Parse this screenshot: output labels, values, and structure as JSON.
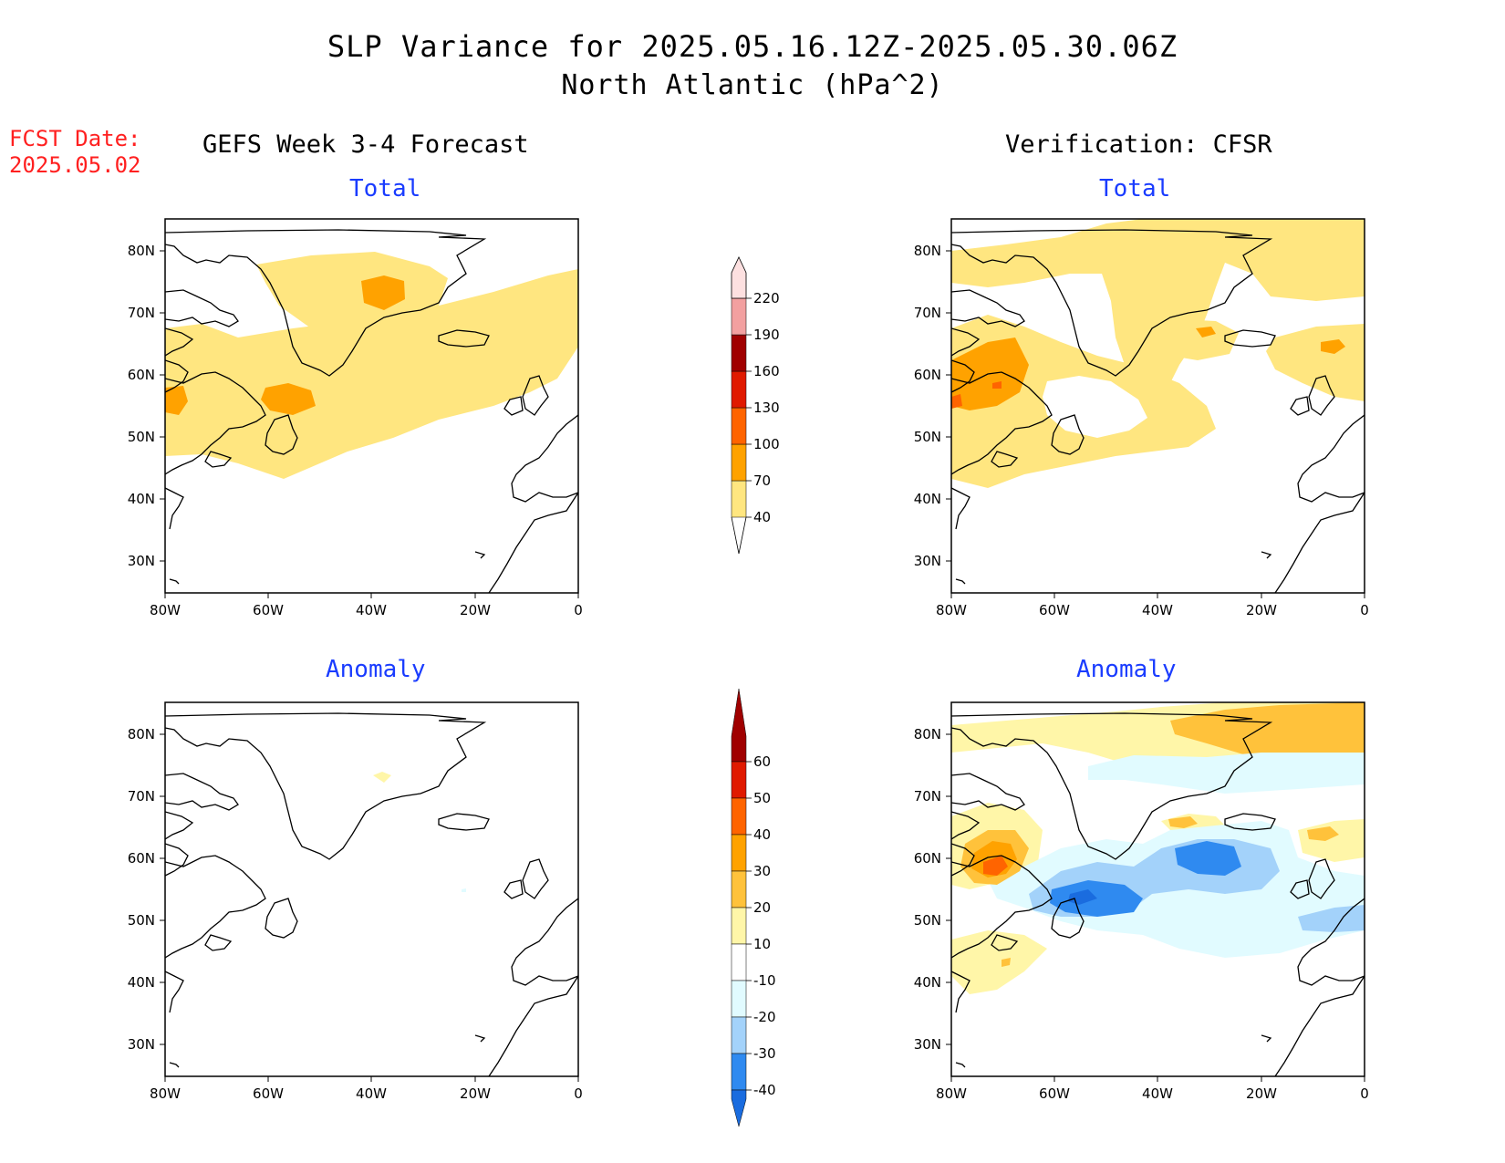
{
  "title": "SLP Variance for 2025.05.16.12Z-2025.05.30.06Z",
  "subtitle": "North Atlantic (hPa^2)",
  "fcst_label": "FCST Date:",
  "fcst_date": "2025.05.02",
  "left_header": "GEFS Week 3-4 Forecast",
  "right_header": "Verification: CFSR",
  "panel_titles": {
    "total": "Total",
    "anomaly": "Anomaly"
  },
  "lat_ticks": [
    "80N",
    "70N",
    "60N",
    "50N",
    "40N",
    "30N"
  ],
  "lon_ticks": [
    "80W",
    "60W",
    "40W",
    "20W",
    "0"
  ],
  "colorbar_total": {
    "levels": [
      "40",
      "70",
      "100",
      "130",
      "160",
      "190",
      "220"
    ],
    "colors": [
      "#ffe680",
      "#ffa200",
      "#ff6400",
      "#e01a00",
      "#a00000",
      "#f2a0a0",
      "#fde0e0"
    ]
  },
  "colorbar_anomaly": {
    "levels": [
      "-40",
      "-30",
      "-20",
      "-10",
      "10",
      "20",
      "30",
      "40",
      "50",
      "60"
    ],
    "colors": [
      "#1a6cdf",
      "#2f8af0",
      "#a3d2fa",
      "#e1fbff",
      "#ffffff",
      "#fff6a8",
      "#ffc23b",
      "#ffa200",
      "#ff6400",
      "#e01a00",
      "#a00000"
    ]
  },
  "colors": {
    "light": "#ffe680",
    "orange": "#ffa200",
    "darkorange": "#ff6400",
    "lightblue": "#e1fbff",
    "midblue": "#a3d2fa",
    "blue": "#2f8af0",
    "deepblue": "#1a6cdf",
    "pale": "#fff6a8",
    "goldorange": "#ffc23b"
  }
}
